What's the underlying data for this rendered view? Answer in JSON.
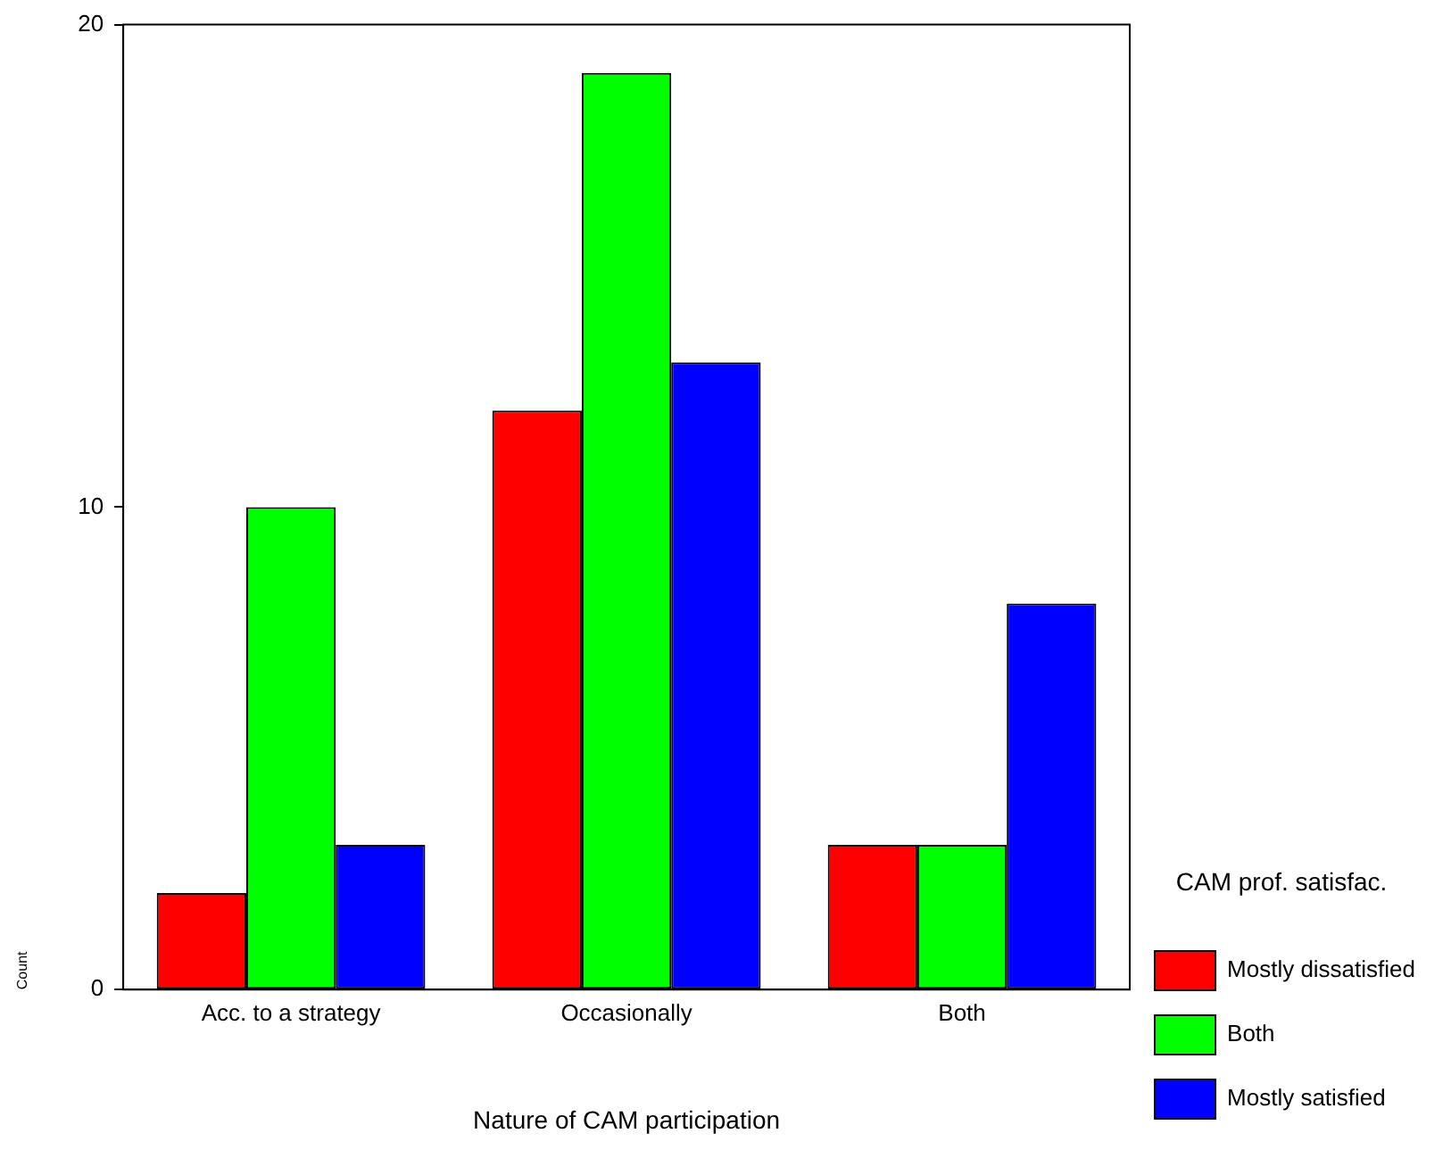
{
  "chart_data": {
    "type": "bar",
    "xlabel": "Nature of CAM participation",
    "ylabel": "Count",
    "legend_title": "CAM prof. satisfac.",
    "legend": "right",
    "categories": [
      "Acc. to a strategy",
      "Occasionally",
      "Both"
    ],
    "series": [
      {
        "name": "Mostly dissatisfied",
        "color": "#ff0000",
        "values": [
          2,
          12,
          3
        ]
      },
      {
        "name": "Both",
        "color": "#00ff00",
        "values": [
          10,
          19,
          3
        ]
      },
      {
        "name": "Mostly satisfied",
        "color": "#0000ff",
        "values": [
          3,
          13,
          8
        ]
      }
    ],
    "ylim": [
      0,
      20
    ],
    "yticks": [
      0,
      10,
      20
    ],
    "grid": false
  }
}
